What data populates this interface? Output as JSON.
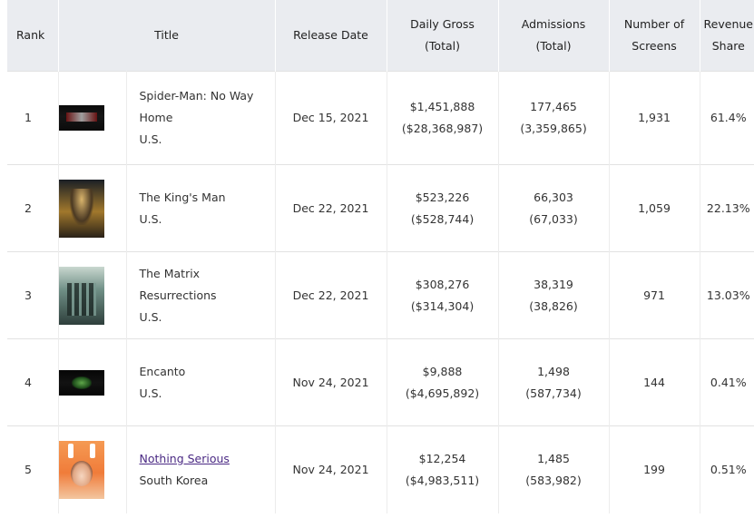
{
  "table": {
    "headers": {
      "rank": "Rank",
      "title": "Title",
      "release_date": "Release Date",
      "daily_gross_l1": "Daily Gross",
      "daily_gross_l2": "(Total)",
      "admissions_l1": "Admissions",
      "admissions_l2": "(Total)",
      "screens_l1": "Number of",
      "screens_l2": "Screens",
      "revenue_l1": "Revenue",
      "revenue_l2": "Share"
    },
    "rows": [
      {
        "rank": "1",
        "title_l1": "Spider-Man: No Way",
        "title_l2": "Home",
        "country": "U.S.",
        "release_date": "Dec 15, 2021",
        "daily_gross": "$1,451,888",
        "total_gross": "($28,368,987)",
        "admissions": "177,465",
        "total_admissions": "(3,359,865)",
        "screens": "1,931",
        "revenue_share": "61.4%"
      },
      {
        "rank": "2",
        "title": "The King's Man",
        "country": "U.S.",
        "release_date": "Dec 22, 2021",
        "daily_gross": "$523,226",
        "total_gross": "($528,744)",
        "admissions": "66,303",
        "total_admissions": "(67,033)",
        "screens": "1,059",
        "revenue_share": "22.13%"
      },
      {
        "rank": "3",
        "title": "The Matrix Resurrections",
        "country": "U.S.",
        "release_date": "Dec 22, 2021",
        "daily_gross": "$308,276",
        "total_gross": "($314,304)",
        "admissions": "38,319",
        "total_admissions": "(38,826)",
        "screens": "971",
        "revenue_share": "13.03%"
      },
      {
        "rank": "4",
        "title": "Encanto",
        "country": "U.S.",
        "release_date": "Nov 24, 2021",
        "daily_gross": "$9,888",
        "total_gross": "($4,695,892)",
        "admissions": "1,498",
        "total_admissions": "(587,734)",
        "screens": "144",
        "revenue_share": "0.41%"
      },
      {
        "rank": "5",
        "title": "Nothing Serious",
        "country": "South Korea",
        "release_date": "Nov 24, 2021",
        "daily_gross": "$12,254",
        "total_gross": "($4,983,511)",
        "admissions": "1,485",
        "total_admissions": "(583,982)",
        "screens": "199",
        "revenue_share": "0.51%"
      }
    ]
  },
  "colors": {
    "header_bg": "#eaecf0",
    "link": "#4b2a84",
    "text": "#333333",
    "border": "#e2e2e2"
  }
}
